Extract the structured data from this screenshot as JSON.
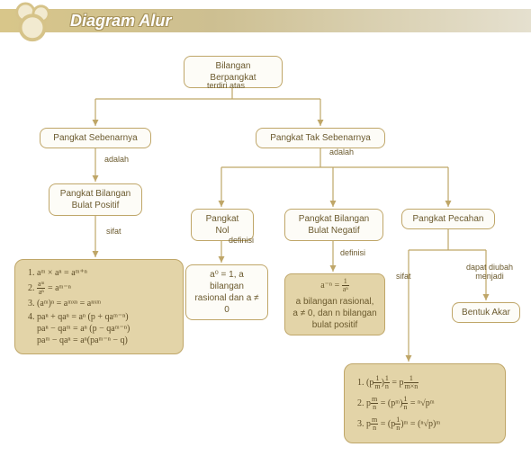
{
  "title": "Diagram Alur",
  "colors": {
    "node_border": "#bfa668",
    "node_bg_light": "#fdfcf7",
    "node_bg_dark": "#e3d4a8",
    "text": "#6b5a2e",
    "logo_ring": "#d6c389",
    "logo_fill": "#f2ead0",
    "headbar_from": "#d8c68a",
    "headbar_to": "#e5e0cf",
    "arrow": "#bfa668"
  },
  "nodes": {
    "root": "Bilangan Berpangkat",
    "left": "Pangkat Sebenarnya",
    "right": "Pangkat Tak Sebenarnya",
    "left_child": "Pangkat Bilangan\nBulat Positif",
    "r1": "Pangkat Nol",
    "r2": "Pangkat Bilangan\nBulat Negatif",
    "r3": "Pangkat Pecahan",
    "r1def": "a⁰ = 1, a bilangan rasional dan a ≠ 0",
    "r2def_top": "a⁻ⁿ = ",
    "r2def_bot": "a bilangan rasional, a ≠ 0, dan n bilangan bulat positif",
    "r3out": "Bentuk Akar"
  },
  "labels": {
    "terdiri": "terdiri atas",
    "adalah": "adalah",
    "sifat": "sifat",
    "definisi": "definisi",
    "dapat": "dapat diubah menjadi"
  },
  "props_left": [
    "aᵐ × aⁿ = aᵐ⁺ⁿ",
    "<span class='frac'><span class='num'>aᵐ</span><span class='den'>aⁿ</span></span> = aᵐ⁻ⁿ",
    "(aᵐ)ⁿ = aᵐˣⁿ = aⁿˣᵐ",
    "paⁿ + qaⁿ = aⁿ (p + qaᵐ⁻ⁿ)<br>paⁿ − qaᵐ = aⁿ (p − qaᵐ⁻ⁿ)<br>paᵐ − qaⁿ = aⁿ(paᵐ⁻ⁿ − q)"
  ],
  "props_right": [
    "(p<span class='frac'><span class='num'>1</span><span class='den'>m</span></span>)<span class='frac'><span class='num'>1</span><span class='den'>n</span></span> = p<span class='frac'><span class='num'>1</span><span class='den'>m×n</span></span>",
    "p<span class='frac'><span class='num'>m</span><span class='den'>n</span></span> = (pᵐ)<span class='frac'><span class='num'>1</span><span class='den'>n</span></span> = ⁿ√pᵐ",
    "p<span class='frac'><span class='num'>m</span><span class='den'>n</span></span> = (p<span class='frac'><span class='num'>1</span><span class='den'>n</span></span>)ᵐ = (ⁿ√p)ᵐ"
  ],
  "frac_r2": {
    "num": "1",
    "den": "aⁿ"
  }
}
